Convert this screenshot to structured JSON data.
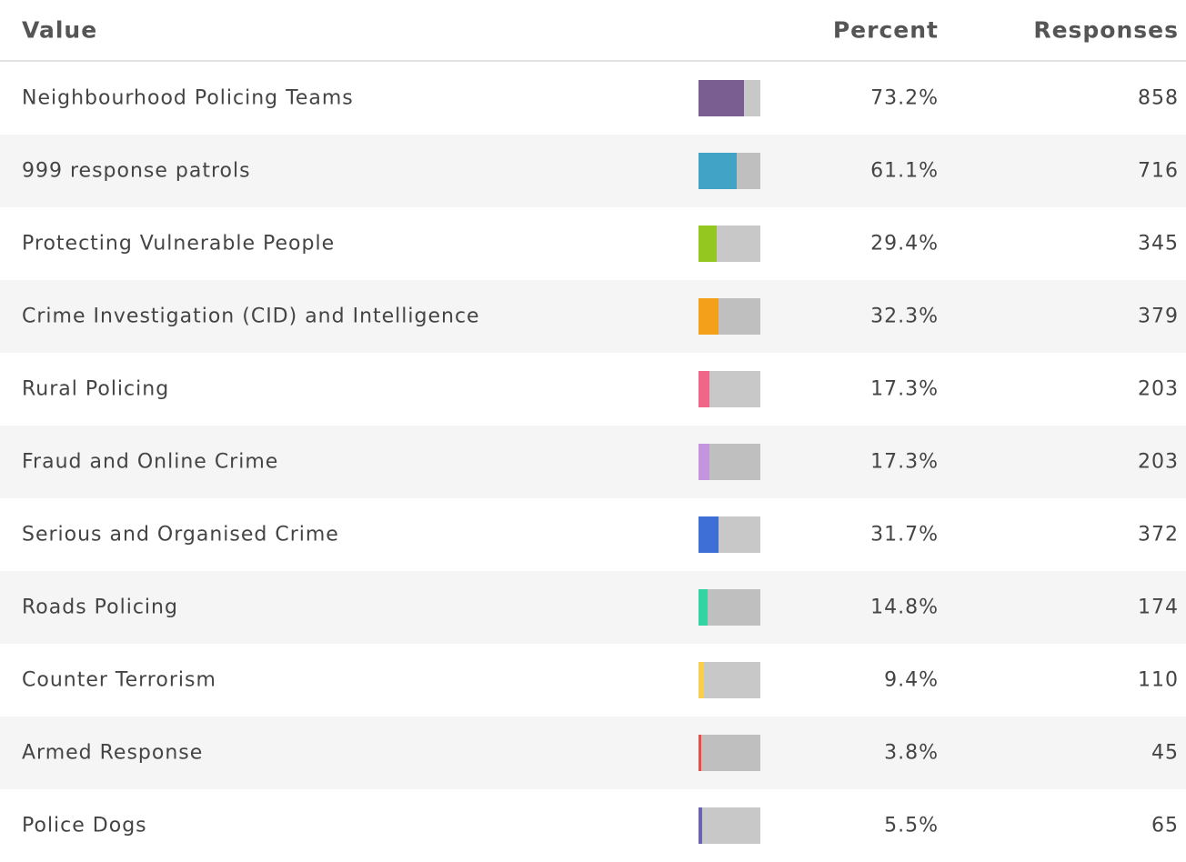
{
  "table": {
    "headers": [
      "Value",
      "Percent",
      "Responses"
    ],
    "rows": [
      {
        "value": "Neighbourhood Policing Teams",
        "percent": 73.2,
        "percent_label": "73.2%",
        "responses": 858,
        "color": "#7b5e91"
      },
      {
        "value": "999 response patrols",
        "percent": 61.1,
        "percent_label": "61.1%",
        "responses": 716,
        "color": "#41a3c6"
      },
      {
        "value": "Protecting Vulnerable People",
        "percent": 29.4,
        "percent_label": "29.4%",
        "responses": 345,
        "color": "#94c720"
      },
      {
        "value": "Crime Investigation (CID) and Intelligence",
        "percent": 32.3,
        "percent_label": "32.3%",
        "responses": 379,
        "color": "#f4a01b"
      },
      {
        "value": "Rural Policing",
        "percent": 17.3,
        "percent_label": "17.3%",
        "responses": 203,
        "color": "#ef6688"
      },
      {
        "value": "Fraud and Online Crime",
        "percent": 17.3,
        "percent_label": "17.3%",
        "responses": 203,
        "color": "#c495de"
      },
      {
        "value": "Serious and Organised Crime",
        "percent": 31.7,
        "percent_label": "31.7%",
        "responses": 372,
        "color": "#3e6fd6"
      },
      {
        "value": "Roads Policing",
        "percent": 14.8,
        "percent_label": "14.8%",
        "responses": 174,
        "color": "#32d4a4"
      },
      {
        "value": "Counter Terrorism",
        "percent": 9.4,
        "percent_label": "9.4%",
        "responses": 110,
        "color": "#f6cf4e"
      },
      {
        "value": "Armed Response",
        "percent": 3.8,
        "percent_label": "3.8%",
        "responses": 45,
        "color": "#d9534f"
      },
      {
        "value": "Police Dogs",
        "percent": 5.5,
        "percent_label": "5.5%",
        "responses": 65,
        "color": "#6b62b0"
      }
    ]
  }
}
